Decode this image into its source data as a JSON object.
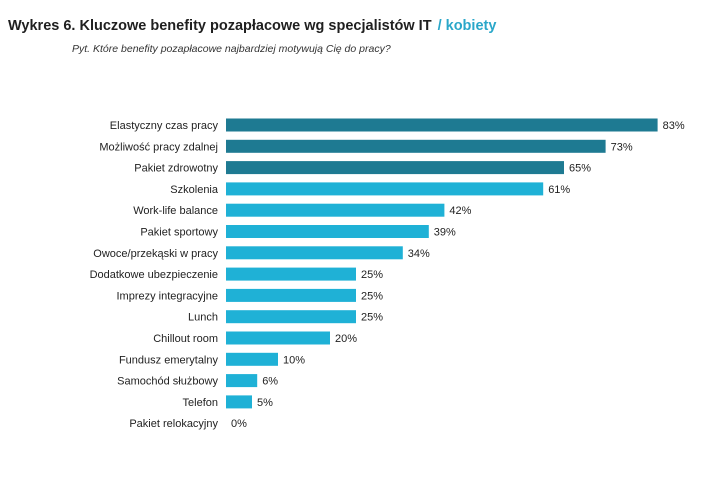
{
  "header": {
    "title": "Wykres 6. Kluczowe benefity pozapłacowe wg specjalistów IT",
    "title_accent": "/ kobiety",
    "subtitle": "Pyt. Które benefity pozapłacowe najbardziej motywują Cię do pracy?"
  },
  "colors": {
    "accent": "#2aa7c9",
    "top_bar": "#1e7a92",
    "bar": "#1fb1d6"
  },
  "chart_data": {
    "type": "bar",
    "orientation": "horizontal",
    "title": "Wykres 6. Kluczowe benefity pozapłacowe wg specjalistów IT / kobiety",
    "subtitle": "Pyt. Które benefity pozapłacowe najbardziej motywują Cię do pracy?",
    "categories": [
      "Elastyczny czas pracy",
      "Możliwość pracy zdalnej",
      "Pakiet zdrowotny",
      "Szkolenia",
      "Work-life balance",
      "Pakiet sportowy",
      "Owoce/przekąski w pracy",
      "Dodatkowe ubezpieczenie",
      "Imprezy integracyjne",
      "Lunch",
      "Chillout room",
      "Fundusz emerytalny",
      "Samochód służbowy",
      "Telefon",
      "Pakiet relokacyjny"
    ],
    "values": [
      83,
      73,
      65,
      61,
      42,
      39,
      34,
      25,
      25,
      25,
      20,
      10,
      6,
      5,
      0
    ],
    "value_labels": [
      "83%",
      "73%",
      "65%",
      "61%",
      "42%",
      "39%",
      "34%",
      "25%",
      "25%",
      "25%",
      "20%",
      "10%",
      "6%",
      "5%",
      "0%"
    ],
    "unit": "%",
    "xlim": [
      0,
      100
    ],
    "highlighted_top": 3,
    "grid": false,
    "legend": "none"
  }
}
